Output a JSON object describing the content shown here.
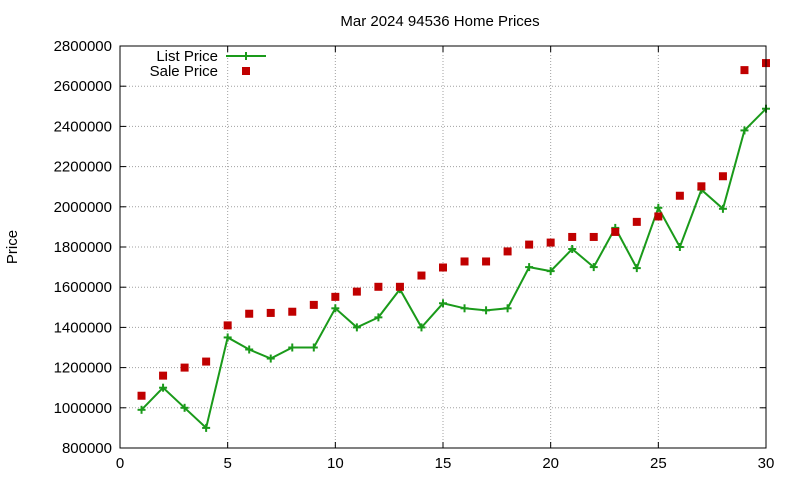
{
  "chart_data": {
    "type": "line",
    "title": "Mar 2024 94536 Home Prices",
    "xlabel": "",
    "ylabel": "Price",
    "xlim": [
      0,
      30
    ],
    "ylim": [
      800000,
      2800000
    ],
    "xticks": [
      0,
      5,
      10,
      15,
      20,
      25,
      30
    ],
    "xtick_labels": [
      "0",
      "5",
      "10",
      "15",
      "20",
      "25",
      "30"
    ],
    "yticks": [
      800000,
      1000000,
      1200000,
      1400000,
      1600000,
      1800000,
      2000000,
      2200000,
      2400000,
      2600000,
      2800000
    ],
    "ytick_labels": [
      "800000",
      "1000000",
      "1200000",
      "1400000",
      "1600000",
      "1800000",
      "2000000",
      "2200000",
      "2400000",
      "2600000",
      "2800000"
    ],
    "grid": true,
    "legend_position": "top-left",
    "series": [
      {
        "name": "List Price",
        "style": "line-with-plus-markers",
        "color": "#1a9a1a",
        "x": [
          1,
          2,
          3,
          4,
          5,
          6,
          7,
          8,
          9,
          10,
          11,
          12,
          13,
          14,
          15,
          16,
          17,
          18,
          19,
          20,
          21,
          22,
          23,
          24,
          25,
          26,
          27,
          28,
          29,
          30
        ],
        "y": [
          990000,
          1100000,
          1000000,
          900000,
          1350000,
          1290000,
          1245000,
          1300000,
          1300000,
          1495000,
          1400000,
          1450000,
          1590000,
          1400000,
          1520000,
          1495000,
          1485000,
          1495000,
          1700000,
          1680000,
          1790000,
          1700000,
          1895000,
          1695000,
          1995000,
          1800000,
          2085000,
          1990000,
          2380000,
          2488000
        ]
      },
      {
        "name": "Sale Price",
        "style": "square-markers",
        "color": "#c00000",
        "x": [
          1,
          2,
          3,
          4,
          5,
          6,
          7,
          8,
          9,
          10,
          11,
          12,
          13,
          14,
          15,
          16,
          17,
          18,
          19,
          20,
          21,
          22,
          23,
          24,
          25,
          26,
          27,
          28,
          29,
          30
        ],
        "y": [
          1060000,
          1160000,
          1200000,
          1230000,
          1410000,
          1468000,
          1472000,
          1478000,
          1512000,
          1552000,
          1578000,
          1602000,
          1602000,
          1658000,
          1698000,
          1728000,
          1728000,
          1778000,
          1812000,
          1822000,
          1850000,
          1850000,
          1875000,
          1925000,
          1952000,
          2055000,
          2102000,
          2152000,
          2680000,
          2715000
        ]
      }
    ]
  }
}
